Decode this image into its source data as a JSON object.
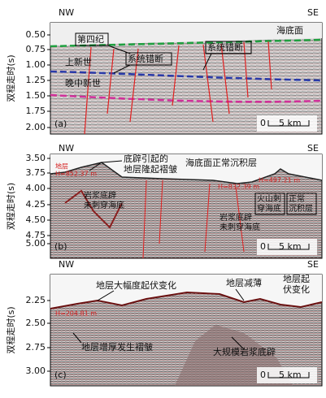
{
  "panels": [
    {
      "nw": "NW",
      "se": "SE",
      "y_label": "双程走时(s)",
      "ticks": [
        "0.50",
        "0.75",
        "1.00",
        "1.25",
        "1.50",
        "1.75",
        "2.00"
      ],
      "labels": [
        "海底面",
        "第四纪",
        "系统错断",
        "系统错断",
        "上新世",
        "晚中新世"
      ],
      "tag": "(a)",
      "scale": [
        "0",
        "5 km"
      ]
    },
    {
      "nw": "NW",
      "se": "SE",
      "y_label": "双程走时(s)",
      "ticks": [
        "3.50",
        "3.75",
        "4.00",
        "4.25",
        "4.50",
        "4.75",
        "5.00"
      ],
      "labels": [
        [
          "底辟引起的",
          "地层隆起褶皱"
        ],
        "海底面正常沉积层",
        "地层",
        "H=852.37 m",
        [
          "岩浆底辟",
          "未刺穿海底"
        ],
        [
          "岩浆底辟",
          "未刺穿海底"
        ],
        [
          "火山刺",
          "穿海底"
        ],
        [
          "正常",
          "沉积层"
        ],
        "H=832.39 m",
        "H=497.21 m"
      ],
      "tag": "(b)",
      "scale": [
        "0",
        "5 km"
      ]
    },
    {
      "nw": "NW",
      "se": "SE",
      "y_label": "双程走时(s)",
      "ticks": [
        "2.25",
        "2.50",
        "2.75",
        "3.00"
      ],
      "labels": [
        "地层大幅度起伏变化",
        "地层减薄",
        [
          "地层起",
          "伏变化"
        ],
        "H=204.81 m",
        "地层增厚发生褶皱",
        "大规模岩浆底辟"
      ],
      "tag": "(c)",
      "scale": [
        "0",
        "5 km"
      ]
    }
  ]
}
